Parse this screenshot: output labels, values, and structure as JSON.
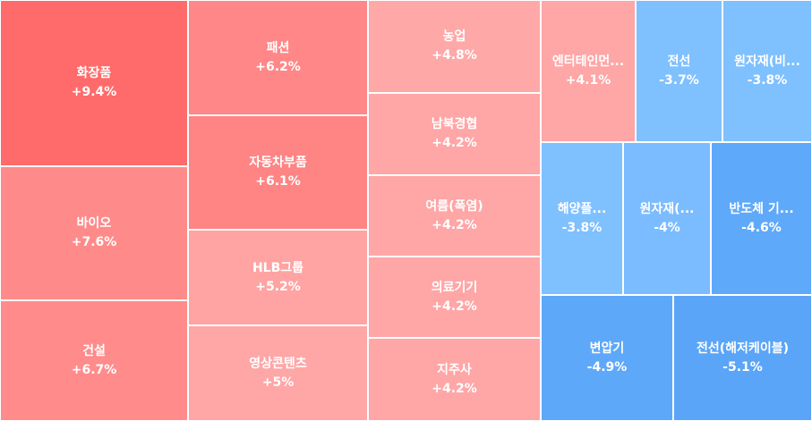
{
  "chart_data": {
    "type": "treemap",
    "unit": "%",
    "items": [
      {
        "label": "화장품",
        "change_text": "+9.4%",
        "value": 9.4,
        "color": "#ff6b6b"
      },
      {
        "label": "바이오",
        "change_text": "+7.6%",
        "value": 7.6,
        "color": "#ff8a8a"
      },
      {
        "label": "건설",
        "change_text": "+6.7%",
        "value": 6.7,
        "color": "#ff8b8b"
      },
      {
        "label": "패션",
        "change_text": "+6.2%",
        "value": 6.2,
        "color": "#ff8787"
      },
      {
        "label": "자동차부품",
        "change_text": "+6.1%",
        "value": 6.1,
        "color": "#ff8484"
      },
      {
        "label": "HLB그룹",
        "change_text": "+5.2%",
        "value": 5.2,
        "color": "#ffa3a3"
      },
      {
        "label": "영상콘텐츠",
        "change_text": "+5%",
        "value": 5.0,
        "color": "#ffa6a6"
      },
      {
        "label": "농업",
        "change_text": "+4.8%",
        "value": 4.8,
        "color": "#ffa8a8"
      },
      {
        "label": "남북경협",
        "change_text": "+4.2%",
        "value": 4.2,
        "color": "#ffa6a6"
      },
      {
        "label": "여름(폭염)",
        "change_text": "+4.2%",
        "value": 4.2,
        "color": "#ffa6a6"
      },
      {
        "label": "의료기기",
        "change_text": "+4.2%",
        "value": 4.2,
        "color": "#ffa6a6"
      },
      {
        "label": "지주사",
        "change_text": "+4.2%",
        "value": 4.2,
        "color": "#ffa6a6"
      },
      {
        "label": "엔터테인먼...",
        "change_text": "+4.1%",
        "value": 4.1,
        "color": "#ffa6a6"
      },
      {
        "label": "전선",
        "change_text": "-3.7%",
        "value": -3.7,
        "color": "#7fc0ff"
      },
      {
        "label": "원자재(비...",
        "change_text": "-3.8%",
        "value": -3.8,
        "color": "#7fc0ff"
      },
      {
        "label": "해양플...",
        "change_text": "-3.8%",
        "value": -3.8,
        "color": "#7fc0ff"
      },
      {
        "label": "원자재(...",
        "change_text": "-4%",
        "value": -4.0,
        "color": "#7abcff"
      },
      {
        "label": "반도체 기...",
        "change_text": "-4.6%",
        "value": -4.6,
        "color": "#5fa9fa"
      },
      {
        "label": "변압기",
        "change_text": "-4.9%",
        "value": -4.9,
        "color": "#5ea8f9"
      },
      {
        "label": "전선(해저케이블)",
        "change_text": "-5.1%",
        "value": -5.1,
        "color": "#5aa5f7"
      }
    ]
  }
}
